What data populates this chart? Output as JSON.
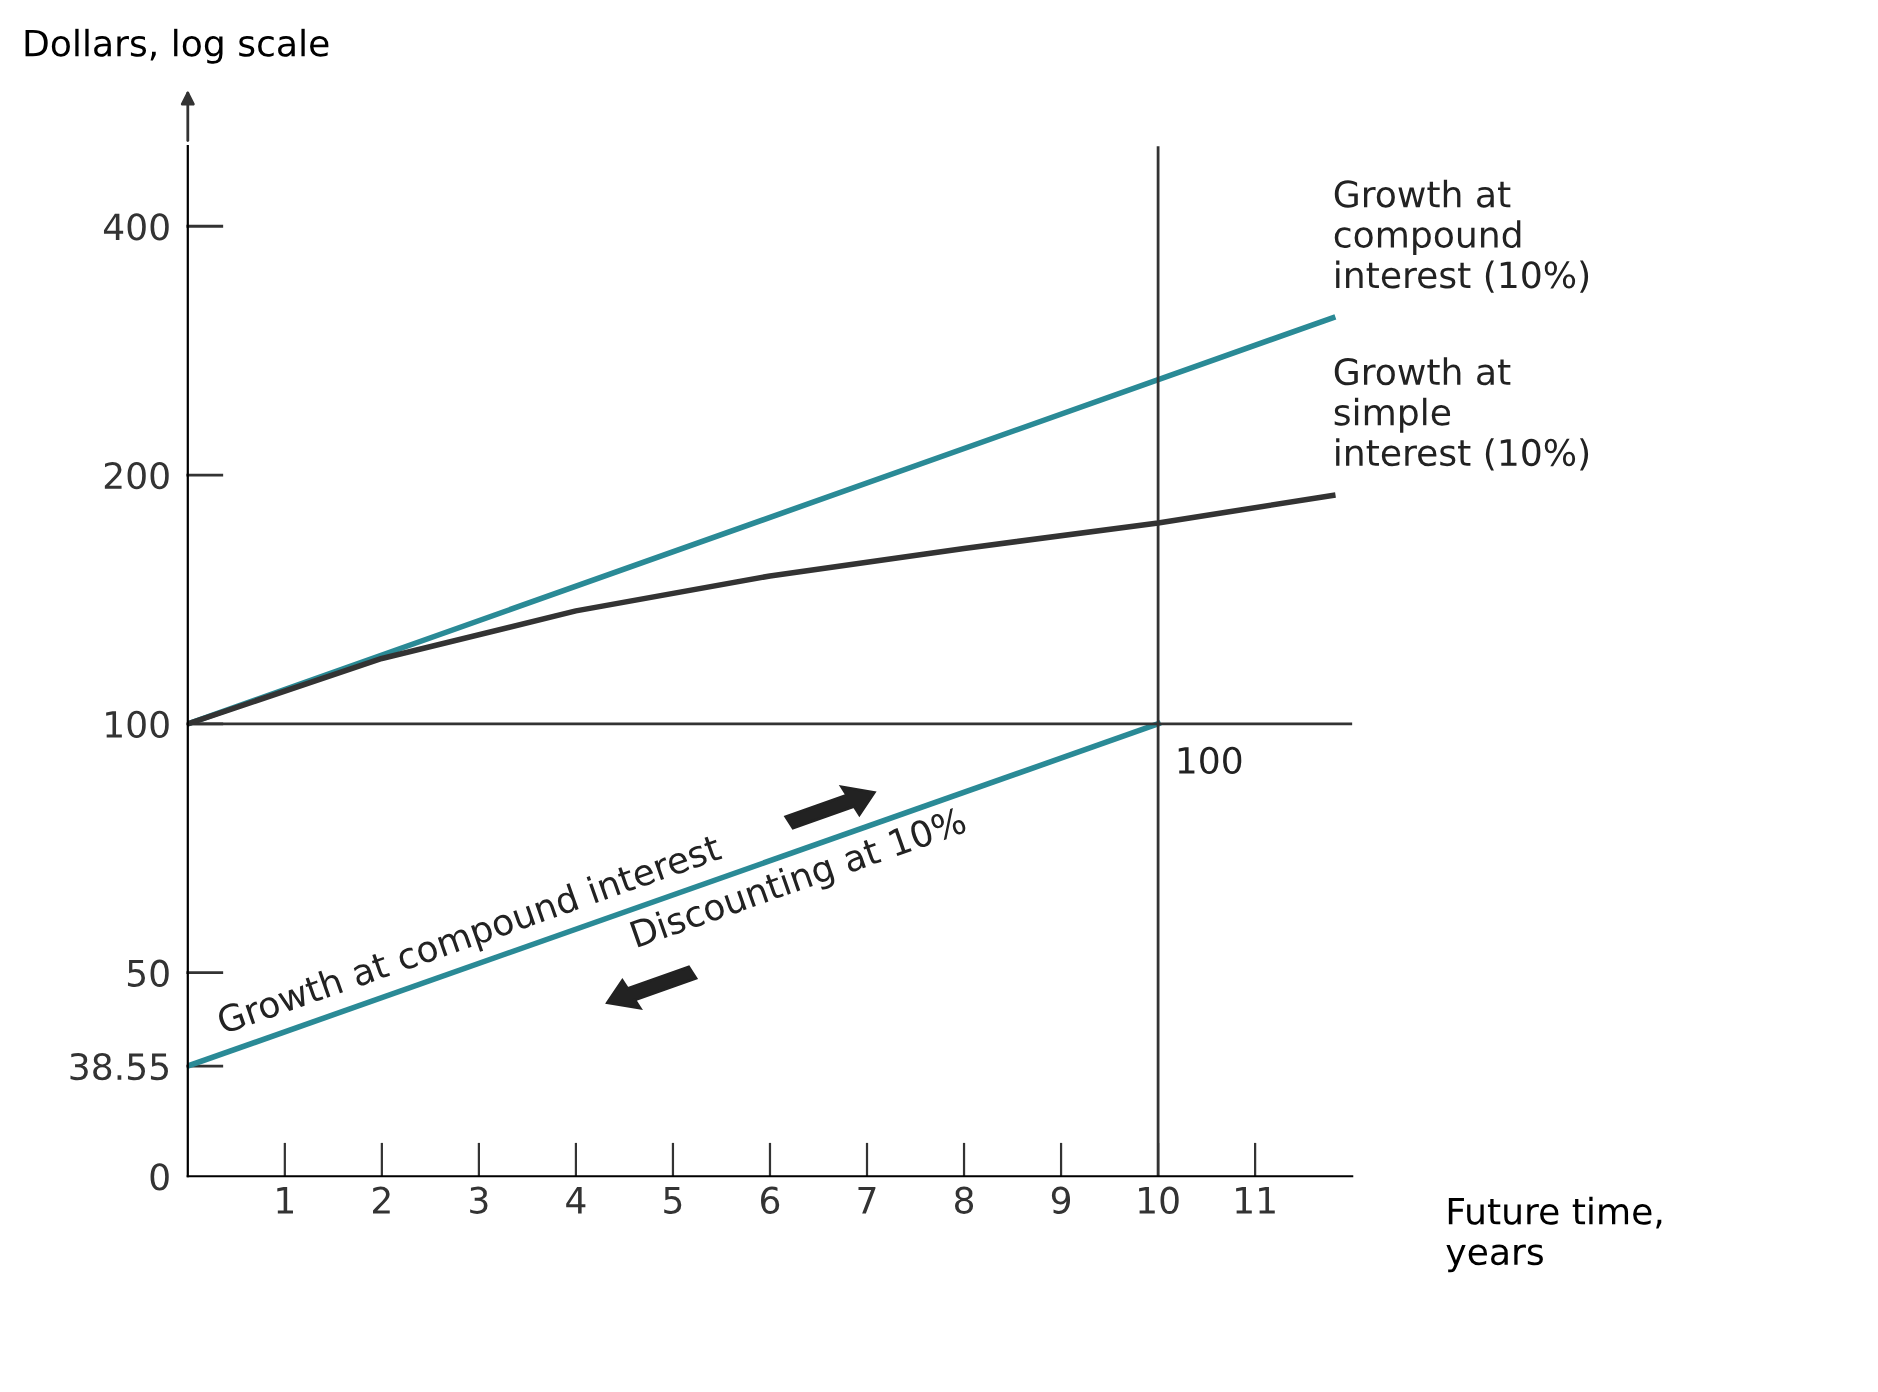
{
  "chart_data": {
    "type": "line",
    "ylabel": "Dollars, log scale",
    "xlabel": "Future time,\nyears",
    "log": "y",
    "xlim": [
      0,
      12
    ],
    "ylim": [
      0,
      500
    ],
    "xticks": [
      1,
      2,
      3,
      4,
      5,
      6,
      7,
      8,
      9,
      10,
      11
    ],
    "yticks": [
      0,
      38.55,
      50,
      100,
      200,
      400
    ],
    "grid": false,
    "marker": "none",
    "line_style": "solid",
    "series": [
      {
        "name": "Growth at\ncompound\ninterest (10%)",
        "color": "#2a8a96",
        "x": [
          0,
          11.8
        ],
        "values": [
          100,
          310
        ]
      },
      {
        "name": "Growth at\nsimple\ninterest (10%)",
        "color": "#333333",
        "x": [
          0,
          2,
          4,
          6,
          8,
          10,
          11.8
        ],
        "values": [
          100,
          120,
          137,
          151,
          163,
          175,
          189
        ]
      },
      {
        "color": "#2a8a96",
        "x": [
          0,
          10
        ],
        "values": [
          38.55,
          100
        ]
      }
    ],
    "ref_lines": [
      {
        "axis": "y",
        "value": 100,
        "color": "#333333"
      },
      {
        "axis": "x",
        "value": 10,
        "color": "#333333"
      }
    ],
    "annotations": [
      {
        "text": "100",
        "x": 10,
        "y": 100
      },
      "Growth at compound interest",
      "Discounting at 10%"
    ]
  }
}
